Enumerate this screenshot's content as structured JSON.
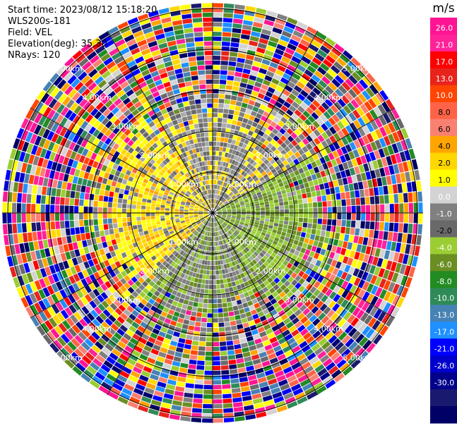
{
  "header": {
    "start_time": "Start time: 2023/08/12 15:18:20",
    "station": "WLS200s-181",
    "field": "Field: VEL",
    "elevation": "Elevation(deg): 35.30",
    "nrays": "NRays: 120"
  },
  "chart_data": {
    "type": "heatmap",
    "projection": "polar PPI",
    "field": "VEL",
    "unit": "m/s",
    "nrays": 120,
    "range_ring_labels": [
      "1.00km",
      "2.00km",
      "3.00km",
      "4.00km",
      "5.00km"
    ],
    "radial_spokes_deg": [
      0,
      30,
      60,
      90,
      120,
      150,
      180,
      210,
      240,
      270,
      300,
      330
    ],
    "pattern_summary": [
      {
        "sector": "west / north-west, inner",
        "value_range": [
          1.0,
          4.0
        ],
        "color": "yellow"
      },
      {
        "sector": "east / south-east, inner",
        "value_range": [
          -4.0,
          -2.0
        ],
        "color": "light green"
      },
      {
        "sector": "north and south, inner",
        "value_range": [
          -1.0,
          1.0
        ],
        "color": "grey"
      },
      {
        "sector": "outer range (noise)",
        "value_range": [
          -30.0,
          26.0
        ],
        "color": "all colors"
      }
    ],
    "colorbar": {
      "unit_label": "m/s",
      "tick_labels": [
        "26.0",
        "21.0",
        "17.0",
        "13.0",
        "10.0",
        "8.0",
        "6.0",
        "4.0",
        "2.0",
        "1.0",
        "0.0",
        "-1.0",
        "-2.0",
        "-4.0",
        "-6.0",
        "-8.0",
        "-10.0",
        "-13.0",
        "-17.0",
        "-21.0",
        "-26.0",
        "-30.0"
      ],
      "colors": [
        "#ff1493",
        "#ff2299",
        "#ff0000",
        "#e8231c",
        "#ff4500",
        "#ff6347",
        "#fa8072",
        "#ffa500",
        "#ffd700",
        "#ffff00",
        "#d3d3d3",
        "#808080",
        "#696969",
        "#9acd32",
        "#6b8e23",
        "#228b22",
        "#2e8b57",
        "#4682b4",
        "#1e90ff",
        "#0000ff",
        "#0000cd",
        "#00008b",
        "#191970",
        "#000066"
      ]
    }
  }
}
